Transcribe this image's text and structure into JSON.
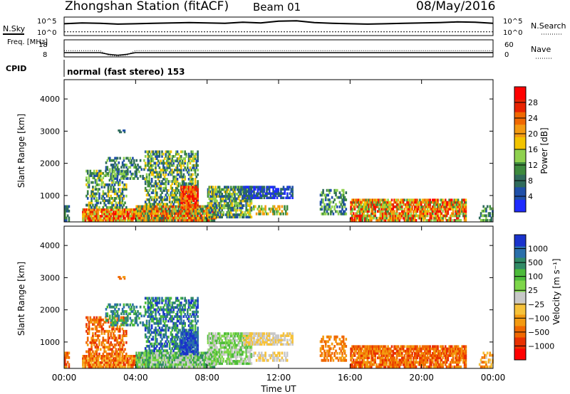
{
  "header": {
    "title": "Zhongshan Station (fitACF)",
    "beam": "Beam 01",
    "date": "08/May/2016"
  },
  "colors": {
    "power_scale": [
      "#1f2bff",
      "#1f4fa8",
      "#2f6b5b",
      "#3d8a3d",
      "#8fd14f",
      "#f2c400",
      "#f39a11",
      "#f06800",
      "#e82200",
      "#ff0000"
    ],
    "velocity_scale": [
      "#1a33cc",
      "#2a6faa",
      "#2f8a66",
      "#4cbb3a",
      "#7ed64a",
      "#c8c8c8",
      "#f6c23a",
      "#f39a11",
      "#f06800",
      "#e83000",
      "#ff0000"
    ]
  },
  "chart_data": [
    {
      "type": "line",
      "name": "nsky-nsearch",
      "ylabel_left": "N.Sky",
      "ylabel_right": "N.Search",
      "left_ticks": [
        "10^5",
        "10^0"
      ],
      "right_ticks": [
        "10^5",
        "10^0"
      ],
      "x": [
        "00:00",
        "01:00",
        "02:00",
        "03:00",
        "04:00",
        "05:00",
        "06:00",
        "07:00",
        "08:00",
        "09:00",
        "10:00",
        "11:00",
        "12:00",
        "13:00",
        "14:00",
        "15:00",
        "16:00",
        "17:00",
        "18:00",
        "19:00",
        "20:00",
        "21:00",
        "22:00",
        "23:00",
        "24:00"
      ],
      "series": [
        {
          "values": [
            3.2,
            3.4,
            3.3,
            3.1,
            3.2,
            3.3,
            3.4,
            3.5,
            3.4,
            3.3,
            3.6,
            3.4,
            3.9,
            4.0,
            3.5,
            3.3,
            3.2,
            3.1,
            3.2,
            3.3,
            3.4,
            3.5,
            3.7,
            3.6,
            3.3
          ]
        },
        {
          "values": [
            1.0,
            1.0,
            1.0,
            1.0,
            1.0,
            1.0,
            1.0,
            1.0,
            1.0,
            1.0,
            1.0,
            1.0,
            1.0,
            1.0,
            1.0,
            1.0,
            1.0,
            1.0,
            1.0,
            1.0,
            1.0,
            1.0,
            1.0,
            1.0,
            1.0
          ]
        }
      ]
    },
    {
      "type": "line",
      "name": "freq-nave",
      "ylabel_left": "Freq. [MHz]",
      "ylabel_right": "Nave",
      "left_ticks": [
        "18",
        "8"
      ],
      "right_ticks": [
        "60",
        "0"
      ],
      "x": [
        "00:00",
        "02:00",
        "02:30",
        "03:00",
        "03:30",
        "04:00",
        "08:00",
        "12:00",
        "16:00",
        "20:00",
        "24:00"
      ],
      "series": [
        {
          "values": [
            10.5,
            10.5,
            9.5,
            9.0,
            9.5,
            10.5,
            10.5,
            10.5,
            10.5,
            10.5,
            10.5
          ]
        },
        {
          "values": [
            22,
            22,
            5,
            3,
            6,
            22,
            22,
            22,
            22,
            22,
            22
          ]
        }
      ]
    },
    {
      "type": "heatmap",
      "name": "power",
      "cpid_label": "CPID",
      "cpid_text": "normal (fast stereo) 153",
      "ylabel": "Slant Range [km]",
      "yticks": [
        "1000",
        "2000",
        "3000",
        "4000"
      ],
      "ylim": [
        180,
        4600
      ],
      "colorbar_label": "Power [dB]",
      "colorbar_ticks": [
        "4",
        "8",
        "12",
        "16",
        "20",
        "24",
        "28"
      ],
      "clim": [
        0,
        32
      ]
    },
    {
      "type": "heatmap",
      "name": "velocity",
      "ylabel": "Slant Range [km]",
      "yticks": [
        "1000",
        "2000",
        "3000",
        "4000"
      ],
      "ylim": [
        180,
        4600
      ],
      "colorbar_label": "Velocity [m s⁻¹]",
      "colorbar_ticks": [
        "1000",
        "500",
        "100",
        "25",
        "−25",
        "−100",
        "−500",
        "−1000"
      ]
    }
  ],
  "xaxis": {
    "ticks": [
      "00:00",
      "04:00",
      "08:00",
      "12:00",
      "16:00",
      "20:00",
      "00:00"
    ],
    "label": "Time UT"
  }
}
